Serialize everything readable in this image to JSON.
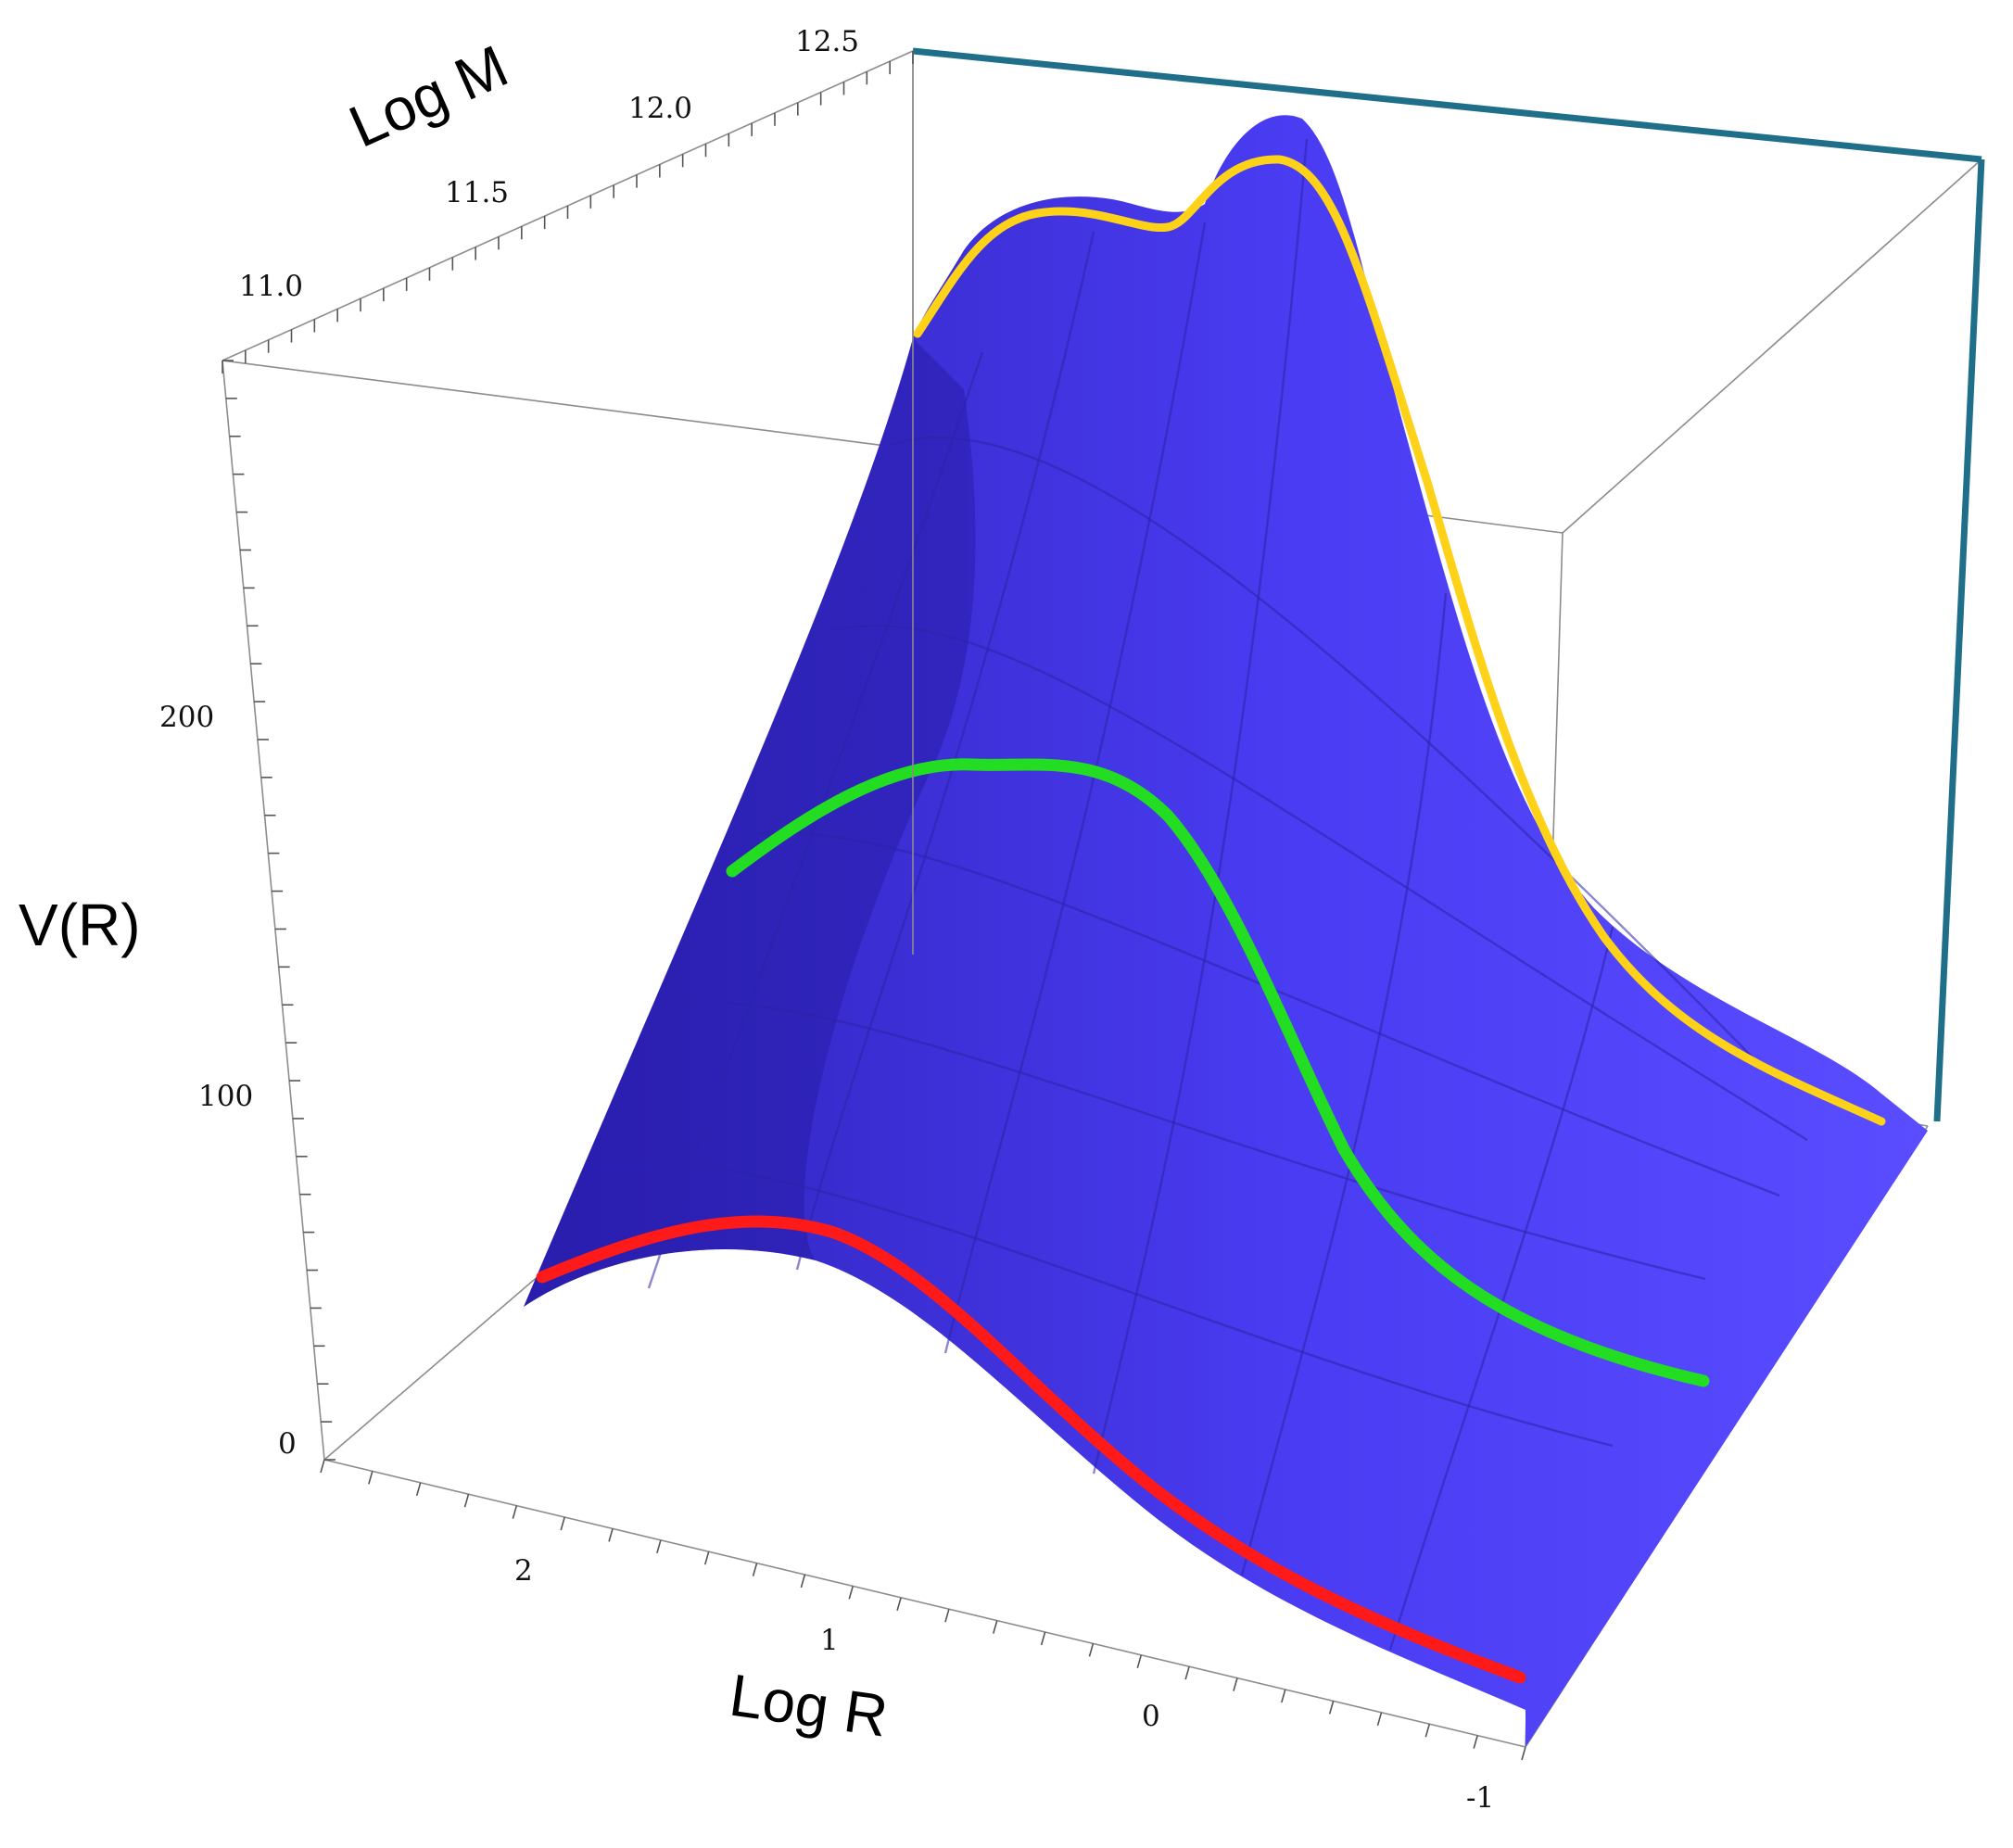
{
  "chart_data": {
    "type": "surface3d",
    "title": "",
    "axes": {
      "x": {
        "label": "Log R",
        "range": [
          -1,
          2.5
        ],
        "ticks": [
          "2",
          "1",
          "0",
          "-1"
        ]
      },
      "y": {
        "label": "Log M",
        "range": [
          10.7,
          12.5
        ],
        "ticks": [
          "11.0",
          "11.5",
          "12.0",
          "12.5"
        ]
      },
      "z": {
        "label": "V(R)",
        "range": [
          0,
          290
        ],
        "ticks": [
          "0",
          "100",
          "200"
        ]
      }
    },
    "surface_color": "#4a3cf2",
    "highlighted_curves": [
      {
        "color": "#ff1a1a",
        "log_m": 10.7,
        "log_r": [
          2.5,
          2.0,
          1.5,
          1.0,
          0.5,
          0.0,
          -0.5,
          -1.0
        ],
        "v": [
          45,
          58,
          60,
          58,
          45,
          25,
          14,
          8
        ]
      },
      {
        "color": "#22dd22",
        "log_m": 11.5,
        "log_r": [
          2.5,
          2.0,
          1.5,
          1.0,
          0.5,
          0.0,
          -0.5,
          -1.0
        ],
        "v": [
          115,
          140,
          140,
          118,
          85,
          52,
          30,
          20
        ]
      },
      {
        "color": "#ffd21a",
        "log_m": 12.5,
        "log_r": [
          2.5,
          2.0,
          1.5,
          1.0,
          0.5,
          0.0,
          -0.5,
          -1.0
        ],
        "v": [
          268,
          275,
          286,
          262,
          210,
          140,
          92,
          65
        ]
      }
    ],
    "bounding_box_highlight_color": "#1f6f8b",
    "grid": true,
    "legend": "none"
  }
}
